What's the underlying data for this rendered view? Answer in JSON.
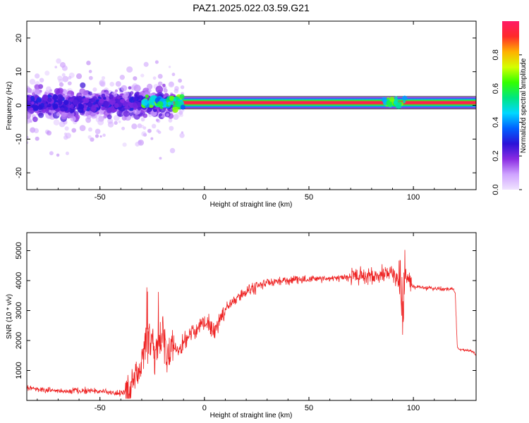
{
  "figure": {
    "title": "PAZ1.2025.022.03.59.G21"
  },
  "colors": {
    "snr_line": "#ee2222",
    "signal_band": "#ff2a4a",
    "frame": "#000000",
    "colormap": [
      "#f0e4ff",
      "#cfa3ff",
      "#8a2be2",
      "#2a12d8",
      "#0060ff",
      "#00d8ff",
      "#00e680",
      "#33ff00",
      "#d4ff00",
      "#ffb000",
      "#ff2a2a",
      "#ff1a66"
    ]
  },
  "chart_data": [
    {
      "type": "heatmap",
      "title": "PAZ1.2025.022.03.59.G21",
      "xlabel": "Height of straight line (km)",
      "ylabel": "Frequency (Hz)",
      "xlim": [
        -85,
        130
      ],
      "ylim": [
        -25,
        25
      ],
      "xticks": [
        -50,
        0,
        50,
        100
      ],
      "yticks": [
        -20,
        -10,
        0,
        10,
        20
      ],
      "grid": false,
      "colorbar": {
        "label": "Normalized spectral amplitude",
        "range": [
          0.0,
          1.0
        ],
        "ticks": [
          0.0,
          0.2,
          0.4,
          0.6,
          0.8
        ],
        "tick_labels": [
          "0.0",
          "0.2",
          "0.4",
          "0.6",
          "0.8"
        ]
      },
      "signal_band": {
        "description_x_ranges": [
          [
            -15,
            130
          ]
        ],
        "center_frequency": 0.8,
        "half_width": 1.2,
        "peak_amplitude": 1.0
      },
      "scatter_region": {
        "x_range": [
          -85,
          -15
        ],
        "center_frequency_range": [
          -4,
          5
        ],
        "typical_amplitude": [
          0.05,
          0.3
        ]
      }
    },
    {
      "type": "line",
      "xlabel": "Height of straight line (km)",
      "ylabel": "SNR (10 * v/v)",
      "xlim": [
        -85,
        130
      ],
      "ylim": [
        0,
        5600
      ],
      "xticks": [
        -50,
        0,
        50,
        100
      ],
      "yticks": [
        1000,
        2000,
        3000,
        4000,
        5000
      ],
      "grid": false,
      "series": [
        {
          "color": "#ee2222",
          "x": [
            -85,
            -80,
            -70,
            -60,
            -50,
            -45,
            -40,
            -37,
            -35,
            -32,
            -30,
            -28,
            -26,
            -24,
            -22,
            -20,
            -18,
            -15,
            -12,
            -10,
            -8,
            -5,
            -2,
            0,
            3,
            5,
            8,
            10,
            13,
            15,
            18,
            20,
            25,
            30,
            35,
            40,
            45,
            50,
            55,
            60,
            65,
            70,
            75,
            80,
            85,
            88,
            90,
            92,
            94,
            95,
            96,
            98,
            100,
            105,
            110,
            115,
            119,
            120,
            121,
            122,
            125,
            128,
            130
          ],
          "y": [
            420,
            380,
            300,
            330,
            310,
            280,
            220,
            300,
            500,
            900,
            1300,
            1800,
            2200,
            1500,
            1800,
            2300,
            1400,
            1800,
            1700,
            2000,
            2100,
            2300,
            2500,
            2600,
            2450,
            2300,
            2800,
            3050,
            3250,
            3420,
            3550,
            3650,
            3800,
            3920,
            3980,
            4000,
            4020,
            4040,
            4060,
            4080,
            4100,
            4120,
            4140,
            4160,
            4200,
            4250,
            4300,
            4100,
            3500,
            2200,
            4300,
            3900,
            3800,
            3760,
            3730,
            3700,
            3720,
            3600,
            1750,
            1700,
            1680,
            1650,
            1500
          ]
        }
      ]
    }
  ]
}
